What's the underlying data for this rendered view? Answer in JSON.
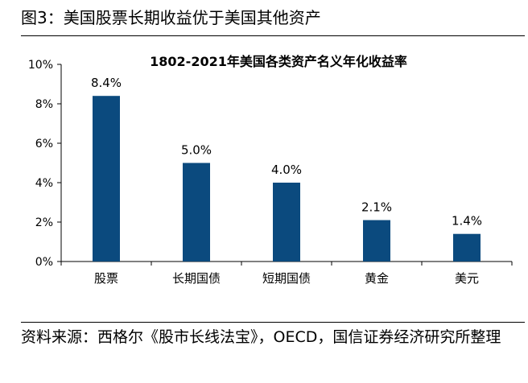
{
  "figure": {
    "title": "图3：美国股票长期收益优于美国其他资产",
    "source": "资料来源：西格尔《股市长线法宝》，OECD，国信证券经济研究所整理"
  },
  "chart_data": {
    "type": "bar",
    "title": "1802-2021年美国各类资产名义年化收益率",
    "categories": [
      "股票",
      "长期国债",
      "短期国债",
      "黄金",
      "美元"
    ],
    "values": [
      8.4,
      5.0,
      4.0,
      2.1,
      1.4
    ],
    "data_labels": [
      "8.4%",
      "5.0%",
      "4.0%",
      "2.1%",
      "1.4%"
    ],
    "y_ticks": [
      0,
      2,
      4,
      6,
      8,
      10
    ],
    "y_tick_labels": [
      "0%",
      "2%",
      "4%",
      "6%",
      "8%",
      "10%"
    ],
    "ylim": [
      0,
      10
    ],
    "bar_color": "#0B4A7E",
    "grid": false,
    "legend": "none"
  }
}
